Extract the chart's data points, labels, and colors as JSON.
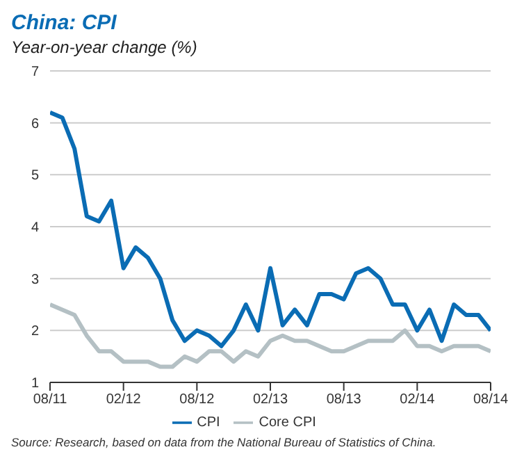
{
  "chart_data": {
    "type": "line",
    "title": "China: CPI",
    "subtitle": "Year-on-year change (%)",
    "categories": [
      "08/11",
      null,
      null,
      null,
      null,
      null,
      "02/12",
      null,
      null,
      null,
      null,
      null,
      "08/12",
      null,
      null,
      null,
      null,
      null,
      "02/13",
      null,
      null,
      null,
      null,
      null,
      "08/13",
      null,
      null,
      null,
      null,
      null,
      "02/14",
      null,
      null,
      null,
      null,
      null,
      "08/14"
    ],
    "series": [
      {
        "name": "CPI",
        "color": "#0a6cb4",
        "values": [
          6.2,
          6.1,
          5.5,
          4.2,
          4.1,
          4.5,
          3.2,
          3.6,
          3.4,
          3.0,
          2.2,
          1.8,
          2.0,
          1.9,
          1.7,
          2.0,
          2.5,
          2.0,
          3.2,
          2.1,
          2.4,
          2.1,
          2.7,
          2.7,
          2.6,
          3.1,
          3.2,
          3.0,
          2.5,
          2.5,
          2.0,
          2.4,
          1.8,
          2.5,
          2.3,
          2.3,
          2.0
        ]
      },
      {
        "name": "Core CPI",
        "color": "#b4c0c4",
        "values": [
          2.5,
          2.4,
          2.3,
          1.9,
          1.6,
          1.6,
          1.4,
          1.4,
          1.4,
          1.3,
          1.3,
          1.5,
          1.4,
          1.6,
          1.6,
          1.4,
          1.6,
          1.5,
          1.8,
          1.9,
          1.8,
          1.8,
          1.7,
          1.6,
          1.6,
          1.7,
          1.8,
          1.8,
          1.8,
          2.0,
          1.7,
          1.7,
          1.6,
          1.7,
          1.7,
          1.7,
          1.6
        ]
      }
    ],
    "ylim": [
      1,
      7
    ],
    "yticks": [
      1,
      2,
      3,
      4,
      5,
      6,
      7
    ],
    "grid": "y",
    "legend": "bottom",
    "marker": "none",
    "line_style": "solid",
    "annotations": [
      "Source: Research, based on data from the National Bureau of Statistics of China."
    ]
  }
}
